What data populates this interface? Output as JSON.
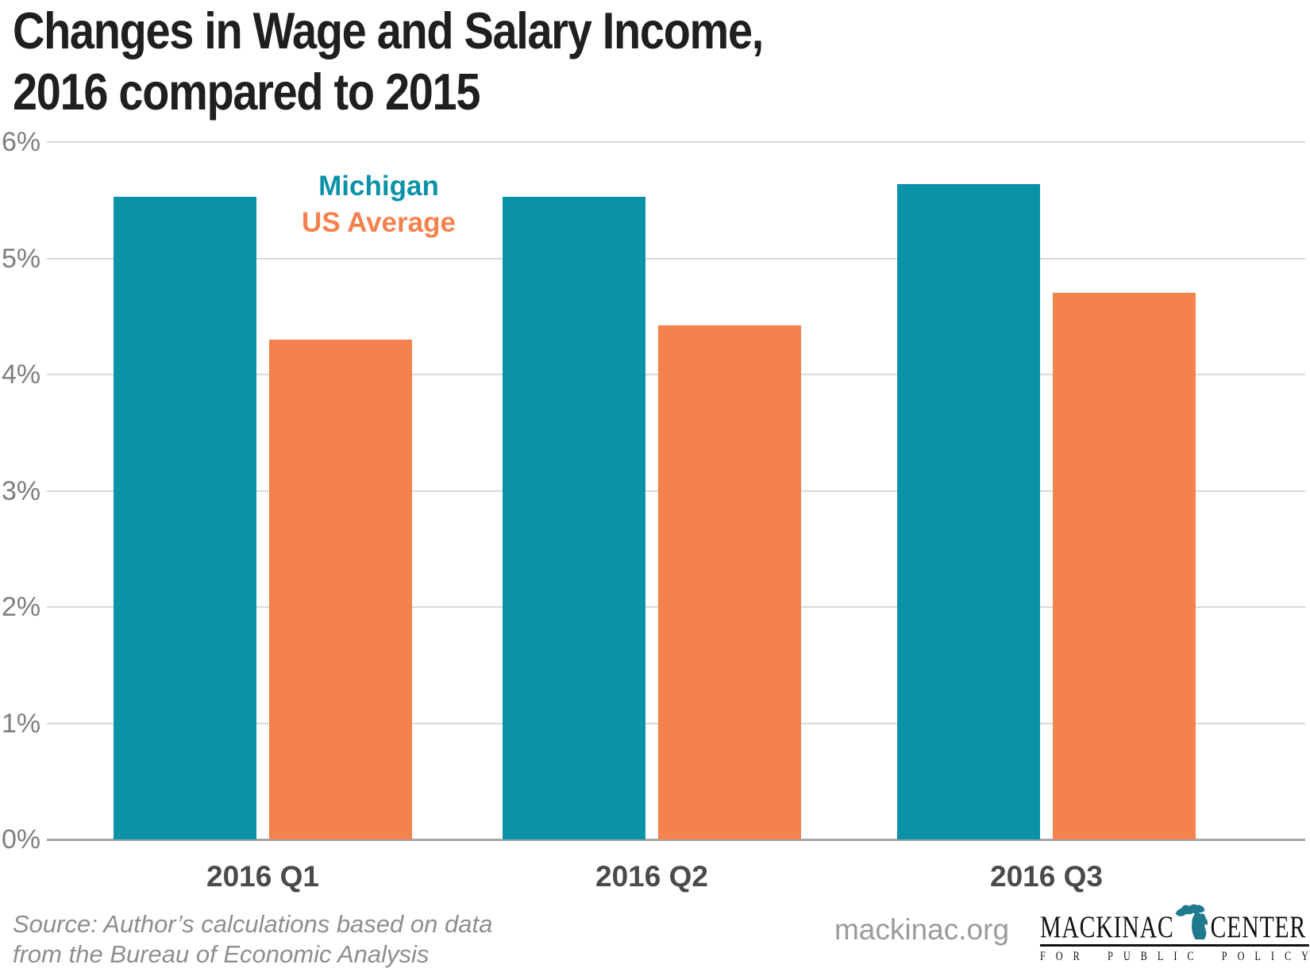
{
  "title": {
    "line1": "Changes in Wage and Salary Income,",
    "line2": "2016 compared to 2015"
  },
  "legend": {
    "items": [
      {
        "label": "Michigan",
        "color": "#0b92a7"
      },
      {
        "label": "US Average",
        "color": "#f4824f"
      }
    ]
  },
  "chart_data": {
    "type": "bar",
    "title": "Changes in Wage and Salary Income, 2016 compared to 2015",
    "categories": [
      "2016 Q1",
      "2016 Q2",
      "2016 Q3"
    ],
    "series": [
      {
        "name": "Michigan",
        "color": "#0b92a7",
        "values": [
          5.53,
          5.53,
          5.64
        ]
      },
      {
        "name": "US Average",
        "color": "#f4824f",
        "values": [
          4.3,
          4.42,
          4.7
        ]
      }
    ],
    "xlabel": "",
    "ylabel": "",
    "ylim": [
      0,
      6
    ],
    "yticks": [
      "0%",
      "1%",
      "2%",
      "3%",
      "4%",
      "5%",
      "6%"
    ],
    "grid": true,
    "legend_position": "inside-top-left"
  },
  "footer": {
    "source_line1": "Source: Author’s calculations based on data",
    "source_line2": "from the Bureau of Economic Analysis",
    "website": "mackinac.org",
    "logo": {
      "word1": "MACKINAC",
      "word2": "CENTER",
      "tagline": "FOR PUBLIC POLICY",
      "icon": "michigan-state-icon",
      "icon_color": "#1f7a8e",
      "text_color": "#111111"
    }
  },
  "colors": {
    "background": "#ffffff",
    "title_text": "#1f1f1f",
    "gridline": "#d9d9d9",
    "axis_baseline": "#a6a6a6",
    "ytick_text": "#7f7f7f",
    "xtick_text": "#4a4a4a",
    "source_text": "#8e8e8e",
    "website_text": "#9b9b9b"
  }
}
